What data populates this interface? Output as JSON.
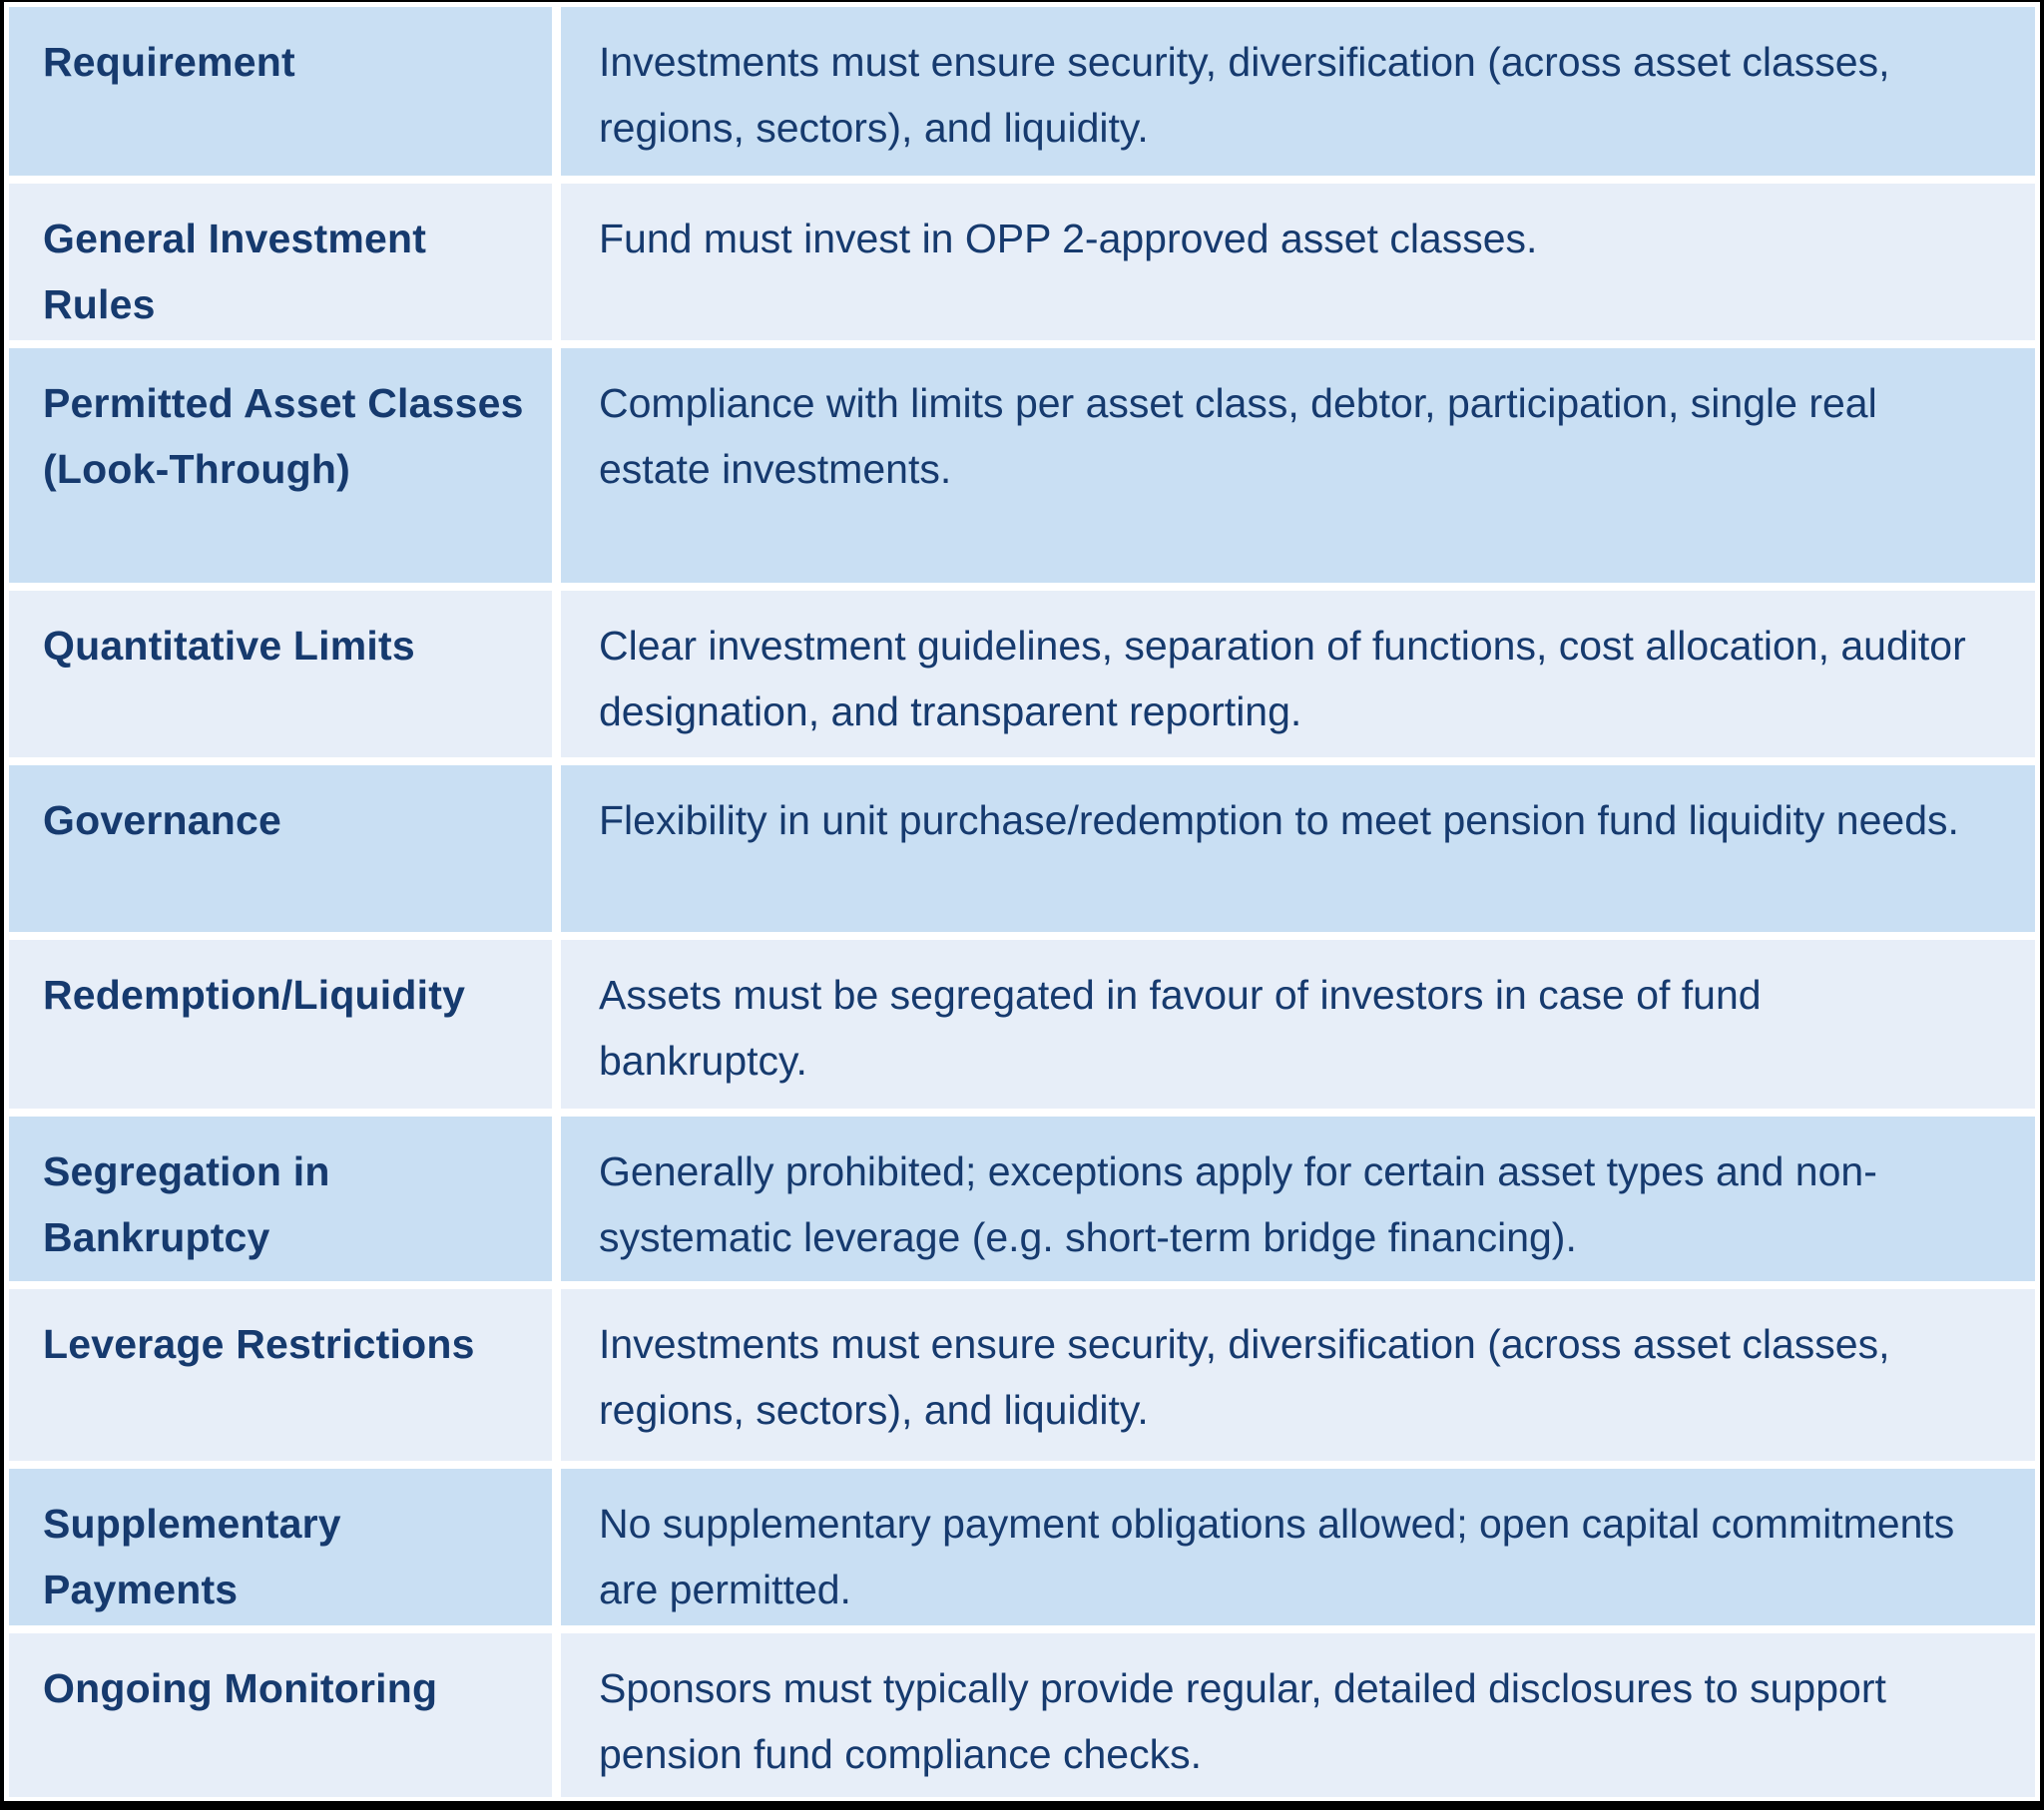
{
  "colors": {
    "row_dark_bg": "#c9dff3",
    "row_light_bg": "#e7eef8",
    "text": "#163a6e",
    "frame": "#000000",
    "grid_gap": "#ffffff"
  },
  "table": {
    "columns": [
      "label",
      "description"
    ],
    "rows": [
      {
        "label": "Requirement",
        "description": "Investments must ensure security, diversification (across asset classes, regions, sectors), and liquidity."
      },
      {
        "label": "General Investment Rules",
        "description": "Fund must invest in OPP 2-approved asset classes."
      },
      {
        "label": "Permitted Asset Classes (Look-Through)",
        "description": "Compliance with limits per asset class, debtor, participation, single real estate investments."
      },
      {
        "label": "Quantitative Limits",
        "description": "Clear investment guidelines, separation of functions, cost allocation, auditor designation, and transparent reporting."
      },
      {
        "label": "Governance",
        "description": "Flexibility in unit purchase/redemption to meet pension fund liquidity needs."
      },
      {
        "label": "Redemption/Liquidity",
        "description": "Assets must be segregated in favour of investors in case of fund bankruptcy."
      },
      {
        "label": "Segregation in Bankruptcy",
        "description": "Generally prohibited; exceptions apply for certain asset types and non-systematic leverage (e.g. short-term bridge financing)."
      },
      {
        "label": "Leverage Restrictions",
        "description": "Investments must ensure security, diversification (across asset classes, regions, sectors), and liquidity."
      },
      {
        "label": "Supplementary Payments",
        "description": "No supplementary payment obligations allowed; open capital commitments are permitted."
      },
      {
        "label": "Ongoing Monitoring",
        "description": "Sponsors must typically provide regular, detailed disclosures to support pension fund compliance checks."
      }
    ]
  }
}
